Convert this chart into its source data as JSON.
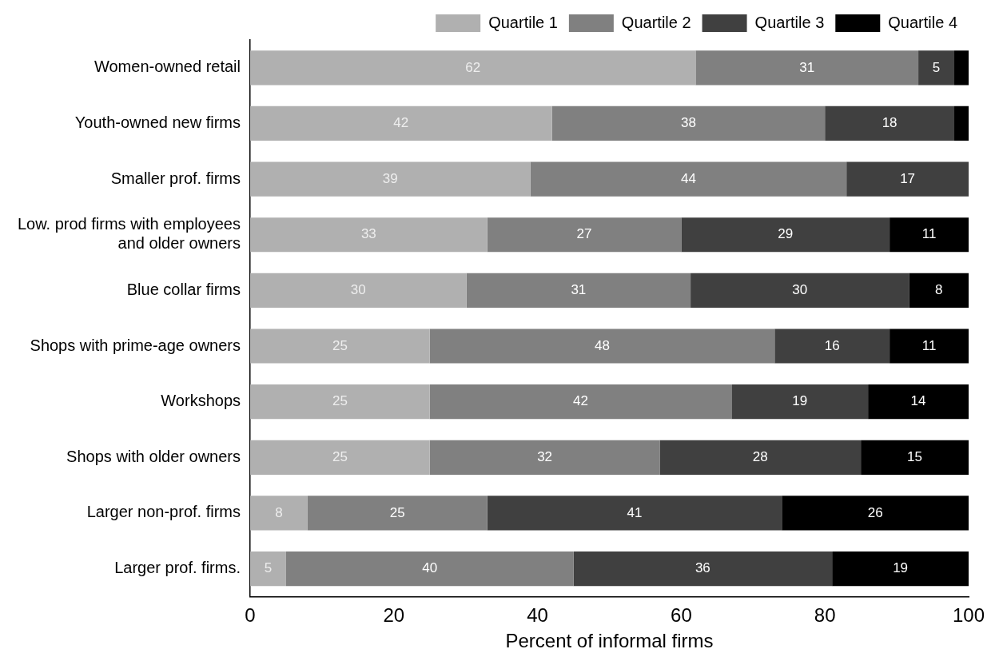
{
  "chart_data": {
    "type": "bar",
    "orientation": "horizontal",
    "stacked": true,
    "xlabel": "Percent of informal firms",
    "categories": [
      "Women-owned retail",
      "Youth-owned new firms",
      "Smaller prof. firms",
      "Low. prod firms with employees\nand older owners",
      "Blue collar firms",
      "Shops with prime-age owners",
      "Workshops",
      "Shops with older owners",
      "Larger non-prof. firms",
      "Larger prof. firms."
    ],
    "series": [
      {
        "name": "Quartile 1",
        "color": "#b0b0b0",
        "values": [
          62,
          42,
          39,
          33,
          30.1,
          25,
          25,
          25,
          8,
          5
        ],
        "value_labels": [
          "62",
          "42",
          "39",
          "33",
          "30",
          "25",
          "25",
          "25",
          "8",
          "5"
        ]
      },
      {
        "name": "Quartile 2",
        "color": "#808080",
        "values": [
          31,
          38,
          44,
          27,
          31.2,
          48,
          42,
          32,
          25,
          40
        ],
        "value_labels": [
          "31",
          "38",
          "44",
          "27",
          "31",
          "48",
          "42",
          "32",
          "25",
          "40"
        ]
      },
      {
        "name": "Quartile 3",
        "color": "#404040",
        "values": [
          5,
          18,
          17,
          29,
          30.4,
          16,
          19,
          28,
          41,
          36
        ],
        "value_labels": [
          "5",
          "18",
          "17",
          "29",
          "30",
          "16",
          "19",
          "28",
          "41",
          "36"
        ]
      },
      {
        "name": "Quartile 4",
        "color": "#000000",
        "values": [
          2,
          2,
          null,
          11,
          8.3,
          11,
          14,
          15,
          26,
          19
        ],
        "value_labels": [
          null,
          null,
          null,
          "11",
          "8",
          "11",
          "14",
          "15",
          "26",
          "19"
        ]
      }
    ],
    "xlim": [
      0,
      100
    ],
    "xticks": [
      0,
      20,
      40,
      60,
      80,
      100
    ],
    "grid": false,
    "legend": "top right"
  }
}
